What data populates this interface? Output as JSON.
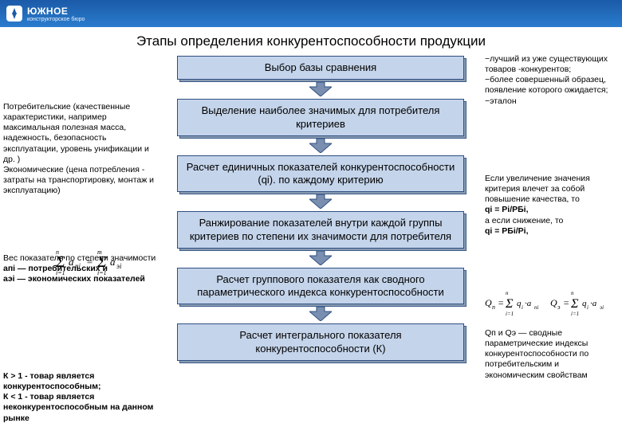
{
  "header": {
    "logo_text": "ЮЖНОЕ",
    "logo_sub": "конструкторское бюро"
  },
  "title": "Этапы определения конкурентоспособности продукции",
  "flow": {
    "steps": [
      "Выбор базы сравнения",
      "Выделение наиболее значимых для потребителя критериев",
      "Расчет единичных показателей конкурентоспособности (qi). по каждому критерию",
      "Ранжирование показателей внутри каждой группы критериев по степени их значимости для потребителя",
      "Расчет группового показателя как сводного параметрического индекса конкурентоспособности",
      "Расчет интегрального показателя конкурентоспособности (К)"
    ]
  },
  "left": {
    "note1": "Потребительские (качественные характеристики, например максимальная полезная масса, надежность, безопасность эксплуатации, уровень унификации и др. )\nЭкономические (цена потребления - затраты на транспортировку, монтаж и эксплуатацию)",
    "note2_pre": "Вес показателя по степени значимости",
    "note2_a": "aпi — потребительских и",
    "note2_b": "aэi — экономических показателей",
    "formula_img": "Σ aпi = Σ aэi",
    "note3_a": "К > 1  -  товар является конкурентоспособным;",
    "note3_b": "К < 1  -  товар является неконкурентоспособным на данном рынке"
  },
  "right": {
    "note1": "−лучший из уже существующих товаров -конкурентов;\n−более совершенный образец, появление которого ожидается;\n−эталон",
    "note2_a": "Если увеличение значения критерия влечет за собой повышение качества, то",
    "note2_b": "qi = Pi/PБi,",
    "note2_c": "а если снижение, то",
    "note2_d": "qi = PБi/Pi,",
    "formula2": "Qп = Σ qi·aпi   Qэ = Σ qi·aэi",
    "note3": "Qп и Qэ — сводные параметрические индексы конкурентоспособности по потребительским и экономическим свойствам"
  },
  "style": {
    "box_bg": "#c4d4ea",
    "box_border": "#2f4f82",
    "box_shadow": "#8a9cb3",
    "arrow_fill": "#7a8fb0",
    "arrow_stroke": "#2f4f82",
    "header_grad_from": "#1b5aa8",
    "header_grad_to": "#2a7cce"
  }
}
